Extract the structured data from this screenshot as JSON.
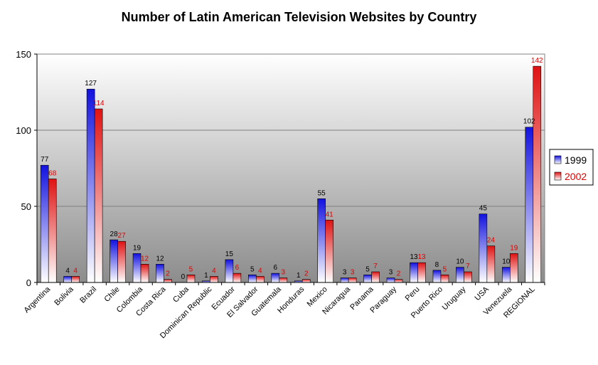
{
  "chart_data": {
    "type": "bar",
    "title": "Number of Latin American Television Websites by Country",
    "xlabel": "",
    "ylabel": "",
    "ylim": [
      0,
      150
    ],
    "yticks": [
      "0",
      "50",
      "100",
      "150"
    ],
    "grid": true,
    "legend_position": "right",
    "categories": [
      "Argentina",
      "Bolivia",
      "Brazil",
      "Chile",
      "Colombia",
      "Costa Rica",
      "Cuba",
      "Dominican Republic",
      "Ecuador",
      "El Salvador",
      "Guatemala",
      "Honduras",
      "Mexico",
      "Nicaragua",
      "Panama",
      "Paraguay",
      "Peru",
      "Puerto Rico",
      "Uruguay",
      "USA",
      "Venezuela",
      "REGIONAL"
    ],
    "series": [
      {
        "name": "1999",
        "color": "#1a1adf",
        "label_color": "#000000",
        "values": [
          77,
          4,
          127,
          28,
          19,
          12,
          0,
          1,
          15,
          5,
          6,
          1,
          55,
          3,
          5,
          3,
          13,
          8,
          10,
          45,
          10,
          102
        ]
      },
      {
        "name": "2002",
        "color": "#e01a1a",
        "label_color": "#e00000",
        "values": [
          68,
          4,
          114,
          27,
          12,
          2,
          5,
          4,
          6,
          4,
          3,
          2,
          41,
          3,
          7,
          2,
          13,
          5,
          7,
          24,
          19,
          142
        ]
      }
    ]
  }
}
